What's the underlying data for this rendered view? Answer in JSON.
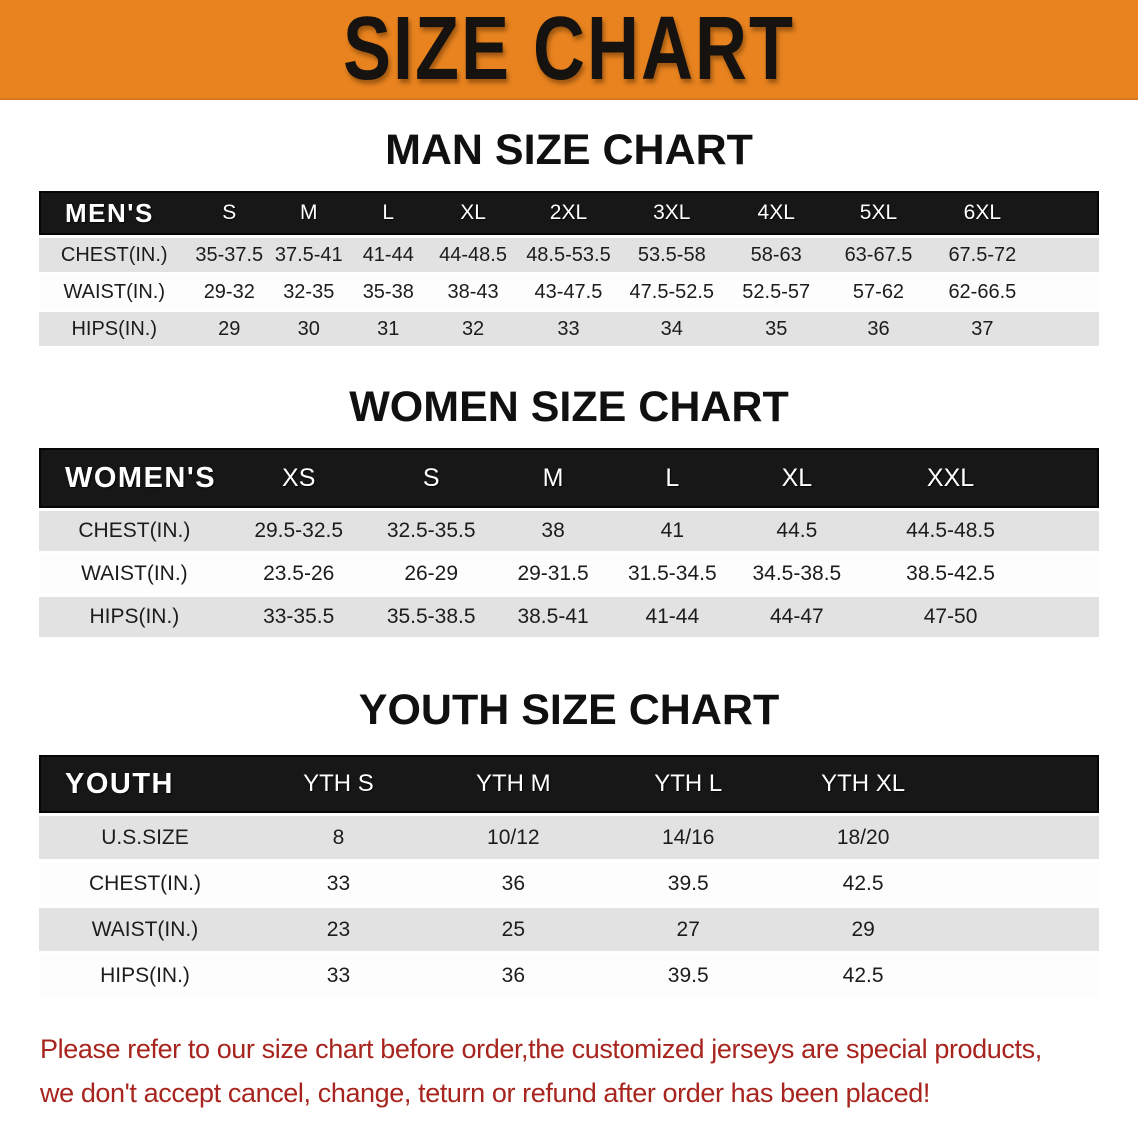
{
  "banner": {
    "title": "SIZE CHART",
    "bg_color": "#E8831F",
    "text_color": "#161210"
  },
  "chart_data": [
    {
      "type": "table",
      "title": "MAN SIZE CHART",
      "group_label": "MEN'S",
      "columns": [
        "S",
        "M",
        "L",
        "XL",
        "2XL",
        "3XL",
        "4XL",
        "5XL",
        "6XL"
      ],
      "rows": [
        {
          "label": "CHEST(IN.)",
          "values": [
            "35-37.5",
            "37.5-41",
            "41-44",
            "44-48.5",
            "48.5-53.5",
            "53.5-58",
            "58-63",
            "63-67.5",
            "67.5-72"
          ]
        },
        {
          "label": "WAIST(IN.)",
          "values": [
            "29-32",
            "32-35",
            "35-38",
            "38-43",
            "43-47.5",
            "47.5-52.5",
            "52.5-57",
            "57-62",
            "62-66.5"
          ]
        },
        {
          "label": "HIPS(IN.)",
          "values": [
            "29",
            "30",
            "31",
            "32",
            "33",
            "34",
            "35",
            "36",
            "37"
          ]
        }
      ]
    },
    {
      "type": "table",
      "title": "WOMEN SIZE CHART",
      "group_label": "WOMEN'S",
      "columns": [
        "XS",
        "S",
        "M",
        "L",
        "XL",
        "XXL"
      ],
      "rows": [
        {
          "label": "CHEST(IN.)",
          "values": [
            "29.5-32.5",
            "32.5-35.5",
            "38",
            "41",
            "44.5",
            "44.5-48.5"
          ]
        },
        {
          "label": "WAIST(IN.)",
          "values": [
            "23.5-26",
            "26-29",
            "29-31.5",
            "31.5-34.5",
            "34.5-38.5",
            "38.5-42.5"
          ]
        },
        {
          "label": "HIPS(IN.)",
          "values": [
            "33-35.5",
            "35.5-38.5",
            "38.5-41",
            "41-44",
            "44-47",
            "47-50"
          ]
        }
      ]
    },
    {
      "type": "table",
      "title": "YOUTH SIZE CHART",
      "group_label": "YOUTH",
      "columns": [
        "YTH S",
        "YTH M",
        "YTH L",
        "YTH XL"
      ],
      "rows": [
        {
          "label": "U.S.SIZE",
          "values": [
            "8",
            "10/12",
            "14/16",
            "18/20"
          ]
        },
        {
          "label": "CHEST(IN.)",
          "values": [
            "33",
            "36",
            "39.5",
            "42.5"
          ]
        },
        {
          "label": "WAIST(IN.)",
          "values": [
            "23",
            "25",
            "27",
            "29"
          ]
        },
        {
          "label": "HIPS(IN.)",
          "values": [
            "33",
            "36",
            "39.5",
            "42.5"
          ]
        }
      ]
    }
  ],
  "colors": {
    "header_band": "#171717",
    "row_stripe": "#E2E2E2",
    "row_plain": "#FDFDFD"
  },
  "footnote": {
    "line1": "Please refer to our size chart before order,the customized jerseys are special products,",
    "line2": "we don't accept cancel, change, teturn or refund after order has been placed!",
    "color": "#A8241E"
  }
}
